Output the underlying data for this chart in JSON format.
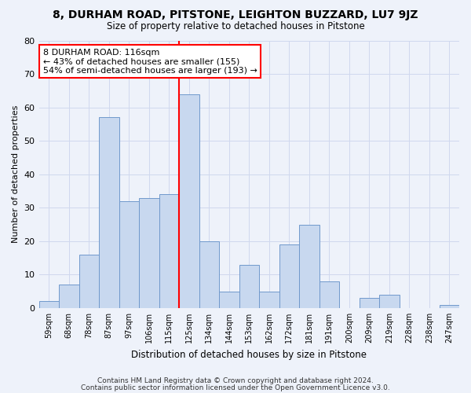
{
  "title1": "8, DURHAM ROAD, PITSTONE, LEIGHTON BUZZARD, LU7 9JZ",
  "title2": "Size of property relative to detached houses in Pitstone",
  "xlabel": "Distribution of detached houses by size in Pitstone",
  "ylabel": "Number of detached properties",
  "categories": [
    "59sqm",
    "68sqm",
    "78sqm",
    "87sqm",
    "97sqm",
    "106sqm",
    "115sqm",
    "125sqm",
    "134sqm",
    "144sqm",
    "153sqm",
    "162sqm",
    "172sqm",
    "181sqm",
    "191sqm",
    "200sqm",
    "209sqm",
    "219sqm",
    "228sqm",
    "238sqm",
    "247sqm"
  ],
  "values": [
    2,
    7,
    16,
    57,
    32,
    33,
    34,
    64,
    20,
    5,
    13,
    5,
    19,
    25,
    8,
    0,
    3,
    4,
    0,
    0,
    1
  ],
  "bar_color": "#c8d8ef",
  "bar_edge_color": "#7099cc",
  "vline_x": 7,
  "annotation_line1": "8 DURHAM ROAD: 116sqm",
  "annotation_line2": "← 43% of detached houses are smaller (155)",
  "annotation_line3": "54% of semi-detached houses are larger (193) →",
  "annotation_box_color": "white",
  "annotation_box_edge": "red",
  "vline_color": "red",
  "ylim": [
    0,
    80
  ],
  "yticks": [
    0,
    10,
    20,
    30,
    40,
    50,
    60,
    70,
    80
  ],
  "footer1": "Contains HM Land Registry data © Crown copyright and database right 2024.",
  "footer2": "Contains public sector information licensed under the Open Government Licence v3.0.",
  "bg_color": "#eef2fa",
  "grid_color": "#d0d8ee"
}
